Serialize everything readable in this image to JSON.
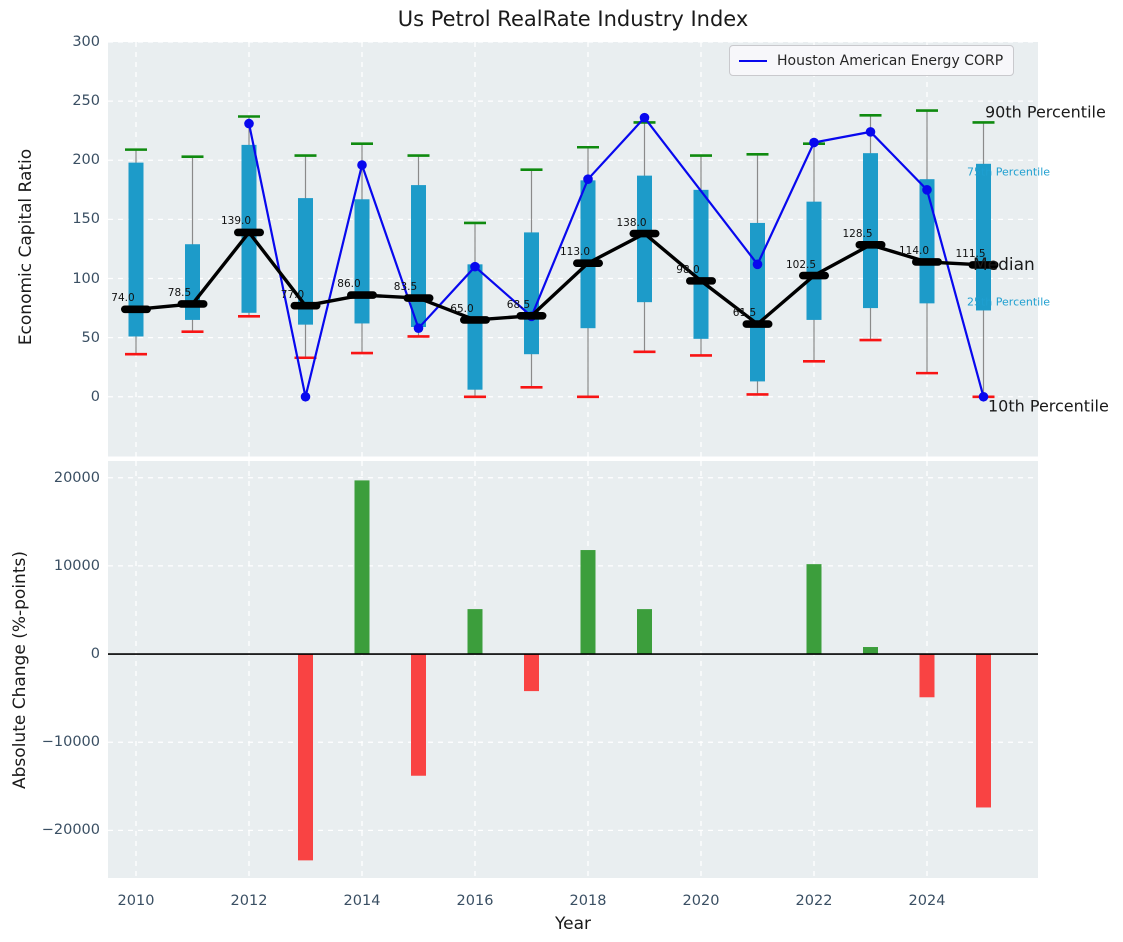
{
  "figure": {
    "background": "#ffffff",
    "plot_background": "#e9eef0",
    "grid_color": "#ffffff",
    "tick_color": "#3a4f63",
    "text_color": "#1a1a1a",
    "annotation_color": "#1f9fd0"
  },
  "chart_data": [
    {
      "type": "box",
      "title": "Us Petrol RealRate Industry Index",
      "ylabel": "Economic Capital Ratio",
      "ylim": [
        -50.5,
        300
      ],
      "yticks": [
        0,
        50,
        100,
        150,
        200,
        250,
        300
      ],
      "grid": true,
      "legend_position": "upper right",
      "years": [
        2010,
        2011,
        2012,
        2013,
        2014,
        2015,
        2016,
        2017,
        2018,
        2019,
        2020,
        2021,
        2022,
        2023,
        2024,
        2025
      ],
      "series": {
        "p90": [
          209,
          203,
          237,
          204,
          214,
          204,
          147,
          192,
          211,
          232,
          204,
          205,
          214,
          238,
          242,
          232
        ],
        "p75": [
          198,
          129,
          213,
          168,
          167,
          179,
          112,
          139,
          183,
          187,
          175,
          147,
          165,
          206,
          184,
          197
        ],
        "median": [
          74.0,
          78.5,
          139.0,
          77.0,
          86.0,
          83.5,
          65.0,
          68.5,
          113.0,
          138.0,
          98.0,
          61.5,
          102.5,
          128.5,
          114.0,
          111.5
        ],
        "p25": [
          51,
          65,
          71,
          61,
          62,
          59,
          6,
          36,
          58,
          80,
          49,
          13,
          65,
          75,
          79,
          73
        ],
        "p10": [
          36,
          55,
          68,
          33,
          37,
          51,
          0,
          8,
          0,
          38,
          35,
          2,
          30,
          48,
          20,
          0
        ]
      },
      "company": {
        "name": "Houston American Energy CORP",
        "values": [
          null,
          null,
          231,
          0,
          196,
          58,
          110,
          68,
          184,
          236,
          null,
          112,
          215,
          224,
          175,
          0
        ]
      },
      "annotations": {
        "p90": "90th Percentile",
        "p75": "75th Percentile",
        "median": "Median",
        "p25": "25th Percentile",
        "p10": "10th Percentile"
      },
      "colors": {
        "box": "#1d9bc9",
        "company": "#0808ee",
        "p90_cap": "#0f8a0f",
        "p10_cap": "#f81414",
        "median": "#000000",
        "whisker": "#8a8a8a"
      }
    },
    {
      "type": "bar",
      "ylabel": "Absolute Change (%-points)",
      "xlabel": "Year",
      "ylim": [
        -25400,
        21900
      ],
      "yticks": [
        -20000,
        -10000,
        0,
        10000,
        20000
      ],
      "xticks": [
        2010,
        2012,
        2014,
        2016,
        2018,
        2020,
        2022,
        2024
      ],
      "grid": true,
      "years": [
        2010,
        2011,
        2012,
        2013,
        2014,
        2015,
        2016,
        2017,
        2018,
        2019,
        2020,
        2021,
        2022,
        2023,
        2024,
        2025
      ],
      "values": [
        0,
        0,
        0,
        -23400,
        19700,
        -13800,
        5100,
        -4200,
        11800,
        5100,
        0,
        0,
        10200,
        800,
        -4900,
        -17400
      ],
      "colors": {
        "positive": "#3c9e3c",
        "negative": "#f94343",
        "zero_line": "#000000"
      }
    }
  ]
}
